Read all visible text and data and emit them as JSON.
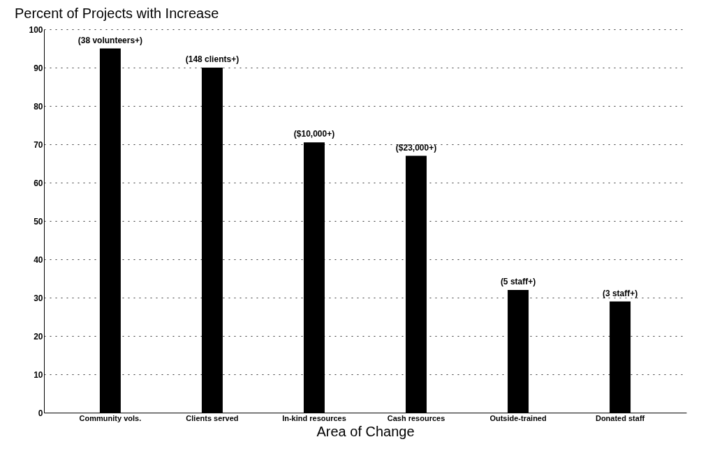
{
  "chart_data": {
    "type": "bar",
    "title": "Percent of Projects with Increase",
    "xlabel": "Area of Change",
    "categories": [
      "Community vols.",
      "Clients served",
      "In-kind resources",
      "Cash resources",
      "Outside-trained",
      "Donated staff"
    ],
    "values": [
      95,
      90,
      70.5,
      67,
      32,
      29
    ],
    "annotations": [
      {
        "text": "(38 volunteers+)",
        "x": "Community vols.",
        "y": 95
      },
      {
        "text": "(148 clients+)",
        "x": "Clients served",
        "y": 90
      },
      {
        "text": "($10,000+)",
        "x": "In-kind resources",
        "y": 70.5
      },
      {
        "text": "($23,000+)",
        "x": "Cash resources",
        "y": 67
      },
      {
        "text": "(5 staff+)",
        "x": "Outside-trained",
        "y": 32
      },
      {
        "text": "(3 staff+)",
        "x": "Donated staff",
        "y": 29
      }
    ],
    "color": "#000000",
    "ylim": [
      0,
      100
    ],
    "yticks": [
      0,
      10,
      20,
      30,
      40,
      50,
      60,
      70,
      80,
      90,
      100
    ],
    "grid": "y"
  }
}
